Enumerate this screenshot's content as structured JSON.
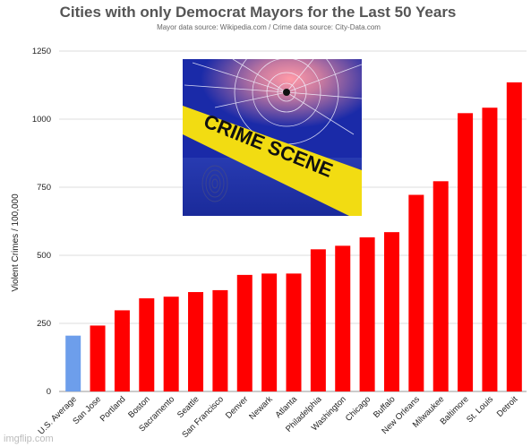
{
  "chart_data": {
    "type": "bar",
    "title": "Cities with only Democrat Mayors for the Last 50 Years",
    "subtitle": "Mayor data source: Wikipedia.com / Crime data source: City-Data.com",
    "xlabel": "",
    "ylabel": "Violent Crimes / 100,000",
    "ylim": [
      0,
      1250
    ],
    "yticks": [
      0,
      250,
      500,
      750,
      1000,
      1250
    ],
    "grid": true,
    "categories": [
      "U.S. Average",
      "San Jose",
      "Portland",
      "Boston",
      "Sacramento",
      "Seattle",
      "San Francisco",
      "Denver",
      "Newark",
      "Atlanta",
      "Philadelphia",
      "Washington",
      "Chicago",
      "Buffalo",
      "New Orleans",
      "Milwaukee",
      "Baltimore",
      "St. Louis",
      "Detroit"
    ],
    "values": [
      205,
      242,
      298,
      342,
      348,
      365,
      372,
      428,
      433,
      433,
      522,
      535,
      566,
      585,
      722,
      772,
      1022,
      1042,
      1135
    ],
    "colors": [
      "#6d9eeb",
      "#ff0000",
      "#ff0000",
      "#ff0000",
      "#ff0000",
      "#ff0000",
      "#ff0000",
      "#ff0000",
      "#ff0000",
      "#ff0000",
      "#ff0000",
      "#ff0000",
      "#ff0000",
      "#ff0000",
      "#ff0000",
      "#ff0000",
      "#ff0000",
      "#ff0000",
      "#ff0000"
    ]
  },
  "overlay_image": {
    "description_icon": "crime-scene-photo",
    "tape_text": "CRIME SCENE"
  },
  "watermark": "imgflip.com"
}
